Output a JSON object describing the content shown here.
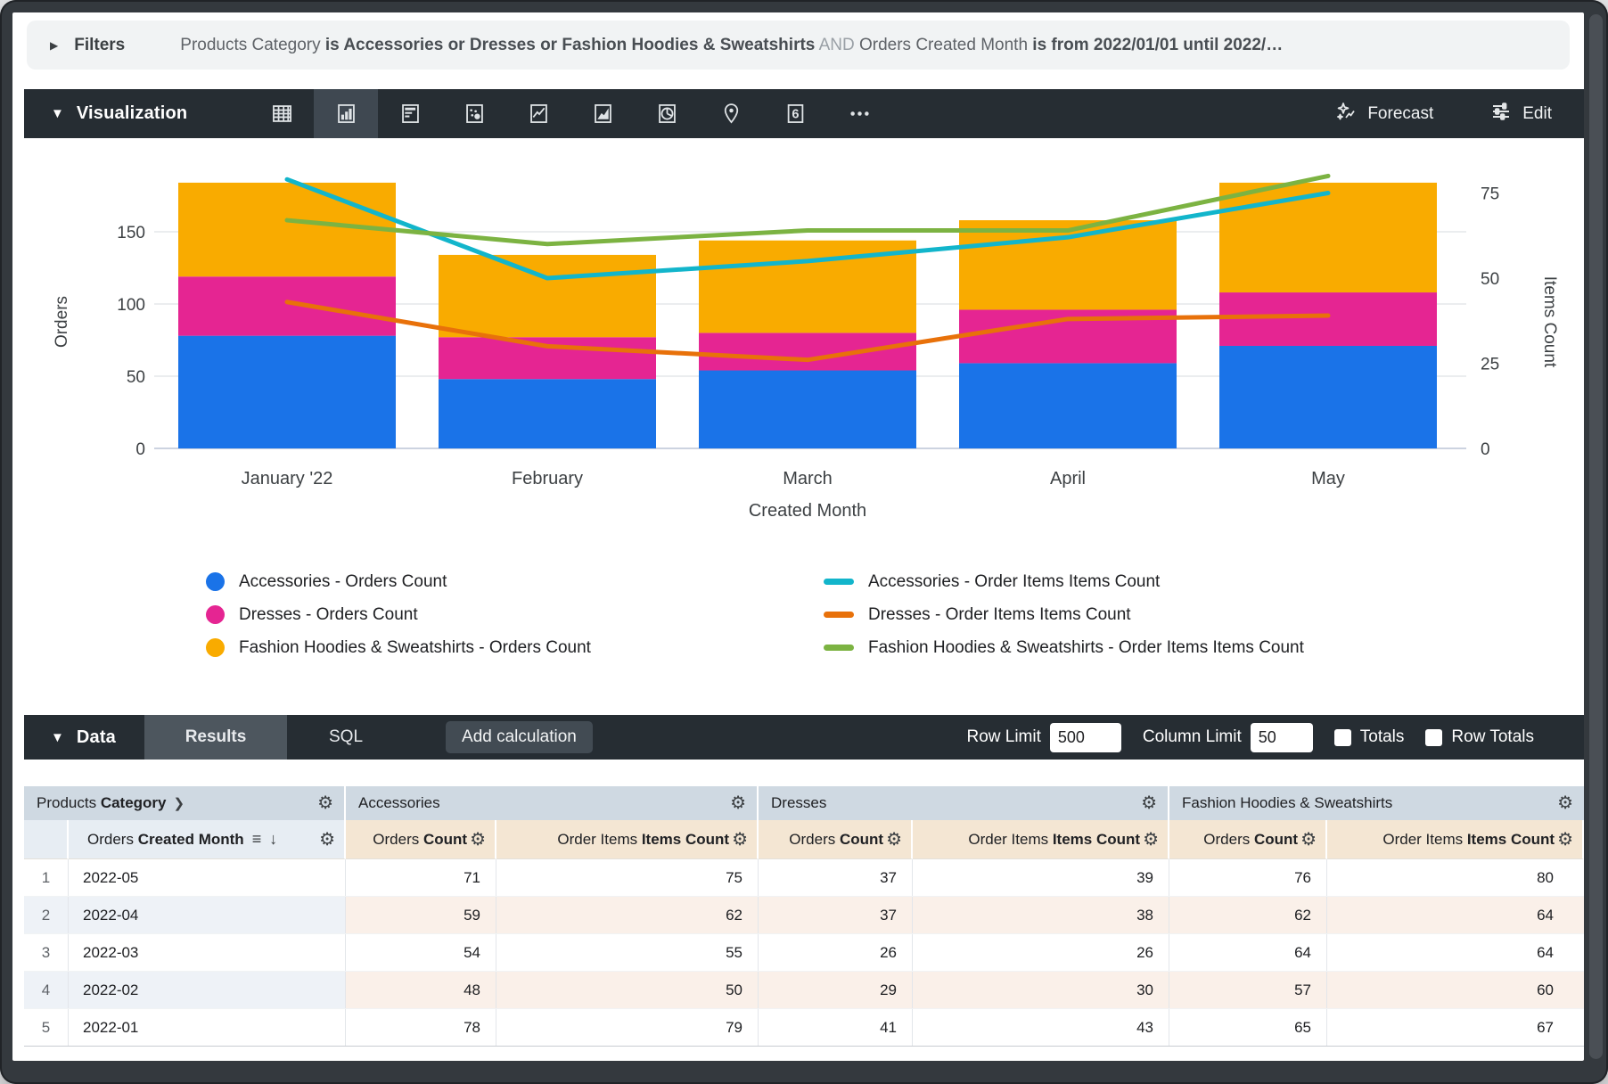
{
  "filters": {
    "label": "Filters",
    "parts": [
      {
        "text": "Products Category ",
        "style": "dim"
      },
      {
        "text": "is Accessories or Dresses or Fashion Hoodies & Sweatshirts",
        "style": "strong"
      },
      {
        "text": " AND ",
        "style": "faint"
      },
      {
        "text": "Orders Created Month ",
        "style": "dim"
      },
      {
        "text": "is from 2022/01/01 until 2022/…",
        "style": "strong"
      }
    ]
  },
  "viz_bar": {
    "title": "Visualization",
    "tools": [
      {
        "name": "table-chart-icon",
        "selected": false
      },
      {
        "name": "column-chart-icon",
        "selected": true
      },
      {
        "name": "bar-chart-icon",
        "selected": false
      },
      {
        "name": "scatter-chart-icon",
        "selected": false
      },
      {
        "name": "line-chart-icon",
        "selected": false
      },
      {
        "name": "area-chart-icon",
        "selected": false
      },
      {
        "name": "pie-chart-icon",
        "selected": false
      },
      {
        "name": "map-chart-icon",
        "selected": false
      },
      {
        "name": "single-value-icon",
        "selected": false
      },
      {
        "name": "more-options-icon",
        "selected": false
      }
    ],
    "forecast_label": "Forecast",
    "edit_label": "Edit"
  },
  "chart_data": {
    "type": "combo-stacked-bar-line",
    "categories": [
      "January '22",
      "February",
      "March",
      "April",
      "May"
    ],
    "x_axis_label": "Created Month",
    "left_axis": {
      "title": "Orders",
      "ticks": [
        0,
        50,
        100,
        150
      ]
    },
    "right_axis": {
      "title": "Items Count",
      "ticks": [
        0,
        25,
        50,
        75
      ]
    },
    "bar_series": [
      {
        "name": "Accessories - Orders Count",
        "color": "#1A73E8",
        "values": [
          78,
          48,
          54,
          59,
          71
        ]
      },
      {
        "name": "Dresses - Orders Count",
        "color": "#E52592",
        "values": [
          41,
          29,
          26,
          37,
          37
        ]
      },
      {
        "name": "Fashion Hoodies & Sweatshirts - Orders Count",
        "color": "#F9AB00",
        "values": [
          65,
          57,
          64,
          62,
          76
        ]
      }
    ],
    "line_series": [
      {
        "name": "Accessories - Order Items Items Count",
        "color": "#12B5CB",
        "values": [
          79,
          50,
          55,
          62,
          75
        ]
      },
      {
        "name": "Dresses - Order Items Items Count",
        "color": "#E8710A",
        "values": [
          43,
          30,
          26,
          38,
          39
        ]
      },
      {
        "name": "Fashion Hoodies & Sweatshirts - Order Items Items Count",
        "color": "#7CB342",
        "values": [
          67,
          60,
          64,
          64,
          80
        ]
      }
    ]
  },
  "data_bar": {
    "title": "Data",
    "tabs": [
      {
        "label": "Results",
        "active": true
      },
      {
        "label": "SQL",
        "active": false
      }
    ],
    "add_calculation_label": "Add calculation",
    "row_limit_label": "Row Limit",
    "row_limit_value": "500",
    "column_limit_label": "Column Limit",
    "column_limit_value": "50",
    "totals_label": "Totals",
    "totals_checked": false,
    "row_totals_label": "Row Totals",
    "row_totals_checked": false
  },
  "table": {
    "groups": [
      {
        "pre": "Products ",
        "strong": "Category",
        "chevron": "❯",
        "gear": "⚙"
      },
      {
        "pre": "",
        "strong": "",
        "label": "Accessories",
        "gear": "⚙"
      },
      {
        "pre": "",
        "strong": "",
        "label": "Dresses",
        "gear": "⚙"
      },
      {
        "pre": "",
        "strong": "",
        "label": "Fashion Hoodies & Sweatshirts",
        "gear": "⚙"
      }
    ],
    "columns": [
      {
        "type": "rownum",
        "pre": "",
        "strong": ""
      },
      {
        "type": "dimension",
        "pre": "Orders ",
        "strong": "Created Month",
        "sorted": true
      },
      {
        "type": "measure",
        "pre": "Orders ",
        "strong": "Count"
      },
      {
        "type": "measure",
        "pre": "Order Items ",
        "strong": "Items Count"
      },
      {
        "type": "measure",
        "pre": "Orders ",
        "strong": "Count"
      },
      {
        "type": "measure",
        "pre": "Order Items ",
        "strong": "Items Count"
      },
      {
        "type": "measure",
        "pre": "Orders ",
        "strong": "Count"
      },
      {
        "type": "measure",
        "pre": "Order Items ",
        "strong": "Items Count"
      }
    ],
    "rows": [
      {
        "num": "1",
        "dimension": "2022-05",
        "values": [
          71,
          75,
          37,
          39,
          76,
          80
        ]
      },
      {
        "num": "2",
        "dimension": "2022-04",
        "values": [
          59,
          62,
          37,
          38,
          62,
          64
        ]
      },
      {
        "num": "3",
        "dimension": "2022-03",
        "values": [
          54,
          55,
          26,
          26,
          64,
          64
        ]
      },
      {
        "num": "4",
        "dimension": "2022-02",
        "values": [
          48,
          50,
          29,
          30,
          57,
          60
        ]
      },
      {
        "num": "5",
        "dimension": "2022-01",
        "values": [
          78,
          79,
          41,
          43,
          65,
          67
        ]
      }
    ]
  }
}
